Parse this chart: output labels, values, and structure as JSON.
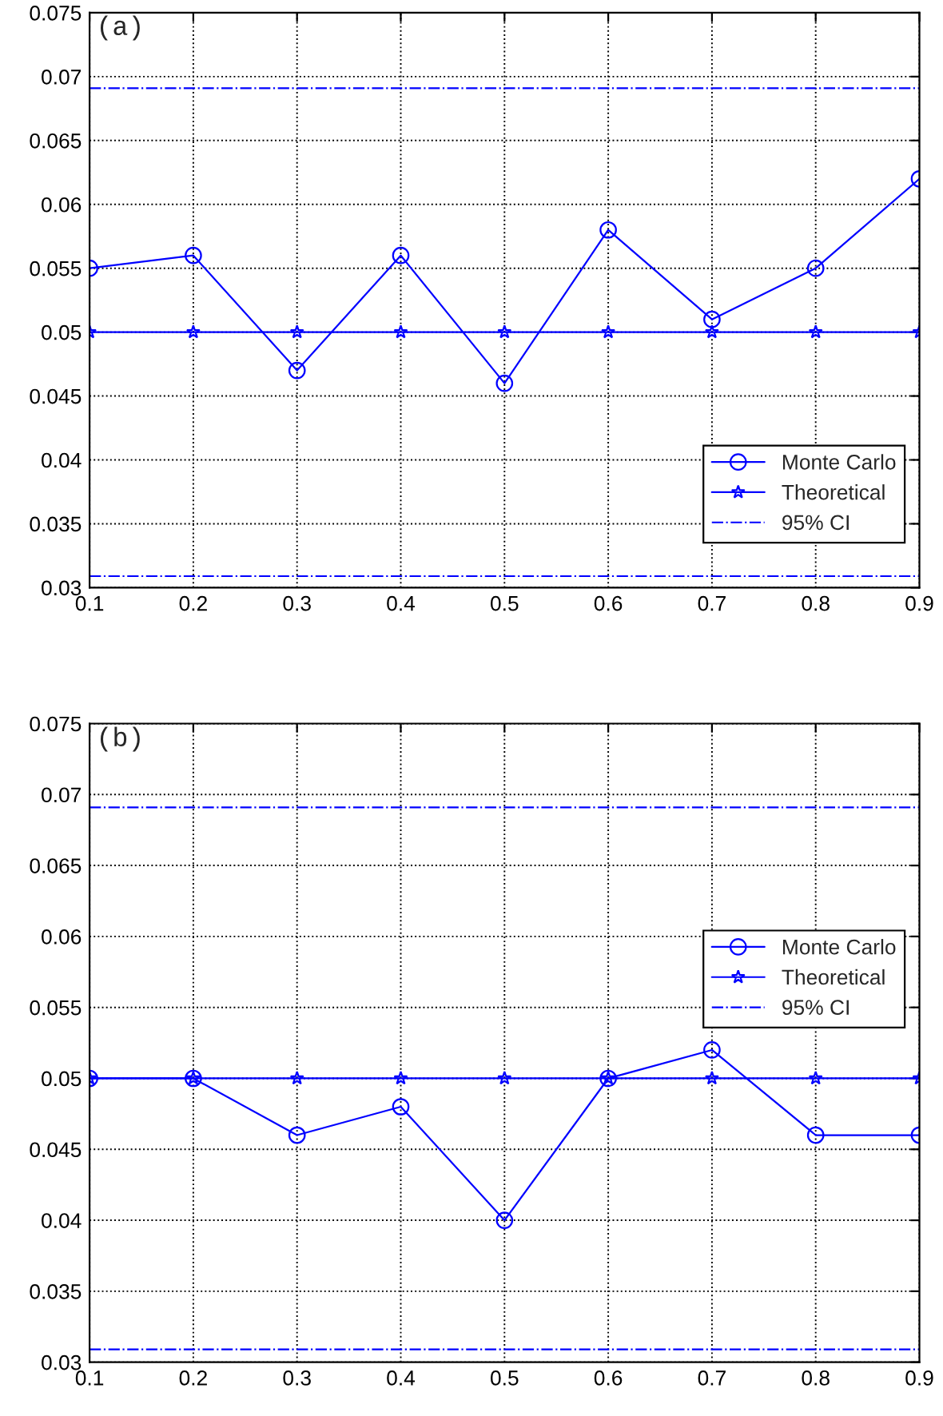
{
  "chart_data": [
    {
      "type": "line",
      "annotations": [
        "(a)"
      ],
      "x": [
        0.1,
        0.2,
        0.3,
        0.4,
        0.5,
        0.6,
        0.7,
        0.8,
        0.9
      ],
      "series": [
        {
          "name": "Monte Carlo",
          "color": "#0000ff",
          "marker": "circle",
          "line_style": "solid",
          "values": [
            0.055,
            0.056,
            0.047,
            0.056,
            0.046,
            0.058,
            0.051,
            0.055,
            0.062
          ]
        },
        {
          "name": "Theoretical",
          "color": "#0000ff",
          "marker": "star",
          "line_style": "solid",
          "values": [
            0.05,
            0.05,
            0.05,
            0.05,
            0.05,
            0.05,
            0.05,
            0.05,
            0.05
          ]
        }
      ],
      "ref_lines": [
        {
          "axis": "y",
          "value": 0.0691,
          "label": "95% CI",
          "color": "#0000ff",
          "line_style": "dashdot"
        },
        {
          "axis": "y",
          "value": 0.0309,
          "color": "#0000ff",
          "line_style": "dashdot"
        }
      ],
      "xlim": [
        0.1,
        0.9
      ],
      "xticks": [
        0.1,
        0.2,
        0.3,
        0.4,
        0.5,
        0.6,
        0.7,
        0.8,
        0.9
      ],
      "ylim": [
        0.03,
        0.075
      ],
      "yticks": [
        0.03,
        0.035,
        0.04,
        0.045,
        0.05,
        0.055,
        0.06,
        0.065,
        0.07,
        0.075
      ],
      "grid": true,
      "legend": "lower right"
    },
    {
      "type": "line",
      "annotations": [
        "(b)"
      ],
      "x": [
        0.1,
        0.2,
        0.3,
        0.4,
        0.5,
        0.6,
        0.7,
        0.8,
        0.9
      ],
      "series": [
        {
          "name": "Monte Carlo",
          "color": "#0000ff",
          "marker": "circle",
          "line_style": "solid",
          "values": [
            0.05,
            0.05,
            0.046,
            0.048,
            0.04,
            0.05,
            0.052,
            0.046,
            0.046
          ]
        },
        {
          "name": "Theoretical",
          "color": "#0000ff",
          "marker": "star",
          "line_style": "solid",
          "values": [
            0.05,
            0.05,
            0.05,
            0.05,
            0.05,
            0.05,
            0.05,
            0.05,
            0.05
          ]
        }
      ],
      "ref_lines": [
        {
          "axis": "y",
          "value": 0.0691,
          "label": "95% CI",
          "color": "#0000ff",
          "line_style": "dashdot"
        },
        {
          "axis": "y",
          "value": 0.0309,
          "color": "#0000ff",
          "line_style": "dashdot"
        }
      ],
      "xlim": [
        0.1,
        0.9
      ],
      "xticks": [
        0.1,
        0.2,
        0.3,
        0.4,
        0.5,
        0.6,
        0.7,
        0.8,
        0.9
      ],
      "ylim": [
        0.03,
        0.075
      ],
      "yticks": [
        0.03,
        0.035,
        0.04,
        0.045,
        0.05,
        0.055,
        0.06,
        0.065,
        0.07,
        0.075
      ],
      "grid": true,
      "legend": "right"
    }
  ]
}
